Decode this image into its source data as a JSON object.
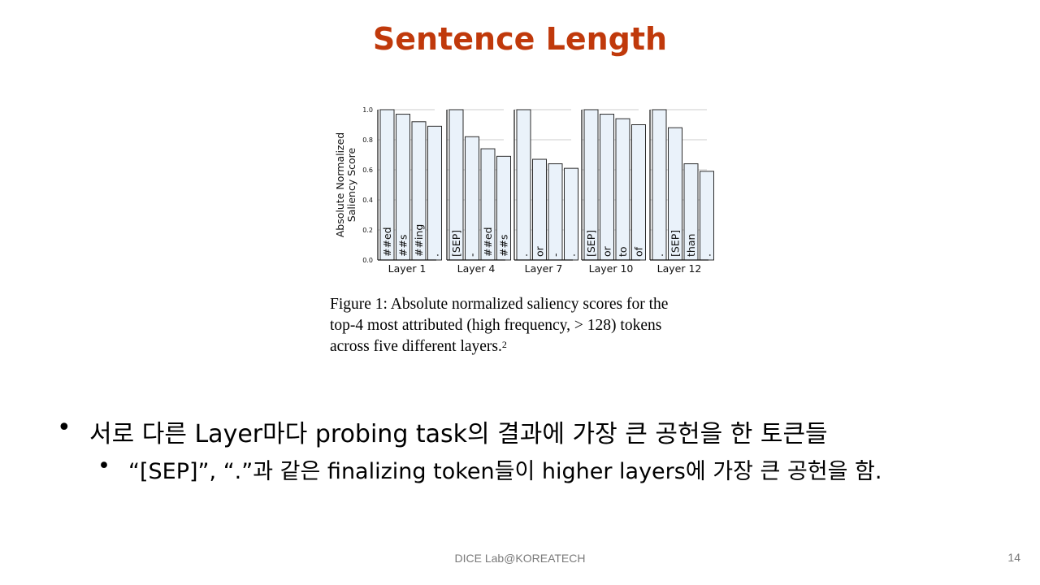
{
  "slide": {
    "title": "Sentence Length",
    "caption_lines": [
      "Figure 1: Absolute normalized saliency scores for the",
      "top-4 most attributed (high frequency, > 128) tokens",
      "across five different layers."
    ],
    "caption_footnote": "2",
    "bullet_1": "서로 다른 Layer마다 probing task의 결과에 가장 큰 공헌을 한 토큰들",
    "bullet_2": "“[SEP]”, “.”과 같은 finalizing token들이 higher layers에 가장 큰 공헌을 함.",
    "footer": "DICE Lab@KOREATECH",
    "page_number": "14"
  },
  "colors": {
    "title": "#c0390b",
    "bar_fill": "#eaf2fa",
    "bar_edge": "#2b2b2b",
    "grid": "#cccccc"
  },
  "chart_data": {
    "type": "bar",
    "ylabel": "Absolute Normalized Saliency Score",
    "ylim": [
      0,
      1.0
    ],
    "yticks": [
      "0.0",
      "0.2",
      "0.4",
      "0.6",
      "0.8",
      "1.0"
    ],
    "grid": true,
    "panels": [
      {
        "xlabel": "Layer 1",
        "tokens": [
          "##ed",
          "##s",
          "##ing",
          "."
        ],
        "values": [
          1.0,
          0.97,
          0.92,
          0.89
        ]
      },
      {
        "xlabel": "Layer 4",
        "tokens": [
          "[SEP]",
          "-",
          "##ed",
          "##s"
        ],
        "values": [
          1.0,
          0.82,
          0.74,
          0.69
        ]
      },
      {
        "xlabel": "Layer 7",
        "tokens": [
          ".",
          "or",
          "-",
          "."
        ],
        "values": [
          1.0,
          0.67,
          0.64,
          0.61
        ]
      },
      {
        "xlabel": "Layer 10",
        "tokens": [
          "[SEP]",
          "or",
          "to",
          "of"
        ],
        "values": [
          1.0,
          0.97,
          0.94,
          0.9
        ]
      },
      {
        "xlabel": "Layer 12",
        "tokens": [
          ".",
          "[SEP]",
          "than",
          "."
        ],
        "values": [
          1.0,
          0.88,
          0.64,
          0.59
        ]
      }
    ]
  }
}
